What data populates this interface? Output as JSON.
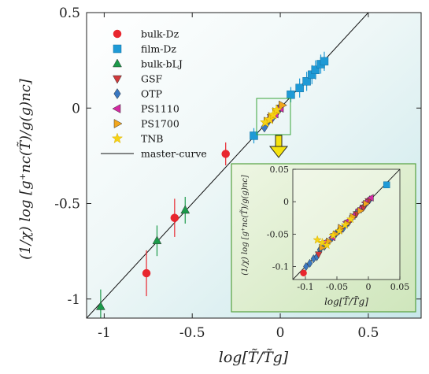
{
  "chart_data": {
    "type": "scatter",
    "title": "",
    "xlabel": "log[T̃/T̃g]",
    "ylabel": "(1/χ) log [g⁺nc(T̃)/g(g)nc]",
    "xlim": [
      -1.1,
      0.8
    ],
    "ylim": [
      -1.1,
      0.5
    ],
    "xticks": [
      "-1",
      "-0.5",
      "0",
      "0.5"
    ],
    "yticks": [
      "0.5",
      "0",
      "-0.5",
      "-1"
    ],
    "grid": false,
    "legend_position": "top-left",
    "master_curve": {
      "name": "master-curve",
      "slope": 1,
      "intercept": 0
    },
    "series": [
      {
        "name": "bulk-Dz",
        "marker": "circle",
        "color": "#e8262e",
        "points": [
          [
            -0.76,
            -0.865
          ],
          [
            -0.6,
            -0.575
          ],
          [
            -0.31,
            -0.24
          ]
        ],
        "errors": [
          0.12,
          0.1,
          0.06
        ]
      },
      {
        "name": "film-Dz",
        "marker": "square",
        "color": "#1f9ad6",
        "points": [
          [
            -0.15,
            -0.145
          ],
          [
            0.06,
            0.07
          ],
          [
            0.11,
            0.105
          ],
          [
            0.15,
            0.14
          ],
          [
            0.18,
            0.175
          ],
          [
            0.2,
            0.2
          ],
          [
            0.23,
            0.23
          ],
          [
            0.25,
            0.245
          ]
        ],
        "errors": [
          0.04,
          0.04,
          0.05,
          0.05,
          0.05,
          0.05,
          0.05,
          0.05
        ]
      },
      {
        "name": "bulk-bLJ",
        "marker": "triangle",
        "color": "#1b9a4a",
        "points": [
          [
            -1.02,
            -1.04
          ],
          [
            -0.7,
            -0.695
          ],
          [
            -0.54,
            -0.535
          ]
        ],
        "errors": [
          0.09,
          0.08,
          0.07
        ]
      },
      {
        "name": "GSF",
        "marker": "triangle-down",
        "color": "#d0393b",
        "points": [
          [
            -0.08,
            -0.085
          ],
          [
            -0.05,
            -0.05
          ],
          [
            -0.02,
            -0.025
          ],
          [
            0.0,
            0.0
          ]
        ],
        "errors": []
      },
      {
        "name": "OTP",
        "marker": "diamond",
        "color": "#3a78c2",
        "points": [
          [
            -0.09,
            -0.1
          ],
          [
            -0.07,
            -0.07
          ],
          [
            -0.045,
            -0.05
          ],
          [
            -0.02,
            -0.02
          ],
          [
            0.0,
            0.005
          ]
        ],
        "errors": []
      },
      {
        "name": "PS1110",
        "marker": "triangle-left",
        "color": "#d42aa3",
        "points": [
          [
            -0.06,
            -0.055
          ],
          [
            -0.03,
            -0.03
          ],
          [
            0.0,
            0.0
          ]
        ],
        "errors": []
      },
      {
        "name": "PS1700",
        "marker": "triangle-right",
        "color": "#f2a61c",
        "points": [
          [
            -0.075,
            -0.07
          ],
          [
            -0.05,
            -0.045
          ],
          [
            -0.025,
            -0.02
          ],
          [
            0.01,
            0.015
          ]
        ],
        "errors": []
      },
      {
        "name": "TNB",
        "marker": "star",
        "color": "#f6d215",
        "points": [
          [
            -0.085,
            -0.075
          ],
          [
            -0.06,
            -0.06
          ],
          [
            -0.04,
            -0.035
          ],
          [
            -0.02,
            -0.01
          ]
        ],
        "errors": []
      }
    ],
    "inset": {
      "xlim": [
        -0.12,
        0.05
      ],
      "ylim": [
        -0.12,
        0.05
      ],
      "xticks": [
        "-0.1",
        "-0.05",
        "0",
        "0.05"
      ],
      "yticks": [
        "0.05",
        "0",
        "-0.05",
        "-0.1"
      ],
      "xlabel": "log[T̃/T̃g]",
      "ylabel": "(1/χ) log [g⁺nc(T̃)/g(g)nc]",
      "series": [
        {
          "name": "bulk-Dz",
          "marker": "circle",
          "color": "#e8262e",
          "points": [
            [
              -0.103,
              -0.11
            ]
          ]
        },
        {
          "name": "film-Dz",
          "marker": "square",
          "color": "#1f9ad6",
          "points": [
            [
              0.029,
              0.026
            ]
          ]
        },
        {
          "name": "OTP",
          "marker": "diamond",
          "color": "#3a78c2",
          "points": [
            [
              -0.099,
              -0.1
            ],
            [
              -0.093,
              -0.095
            ],
            [
              -0.087,
              -0.088
            ],
            [
              -0.082,
              -0.085
            ],
            [
              -0.077,
              -0.074
            ],
            [
              -0.07,
              -0.069
            ],
            [
              -0.065,
              -0.064
            ],
            [
              -0.058,
              -0.056
            ],
            [
              -0.052,
              -0.05
            ],
            [
              -0.047,
              -0.045
            ],
            [
              -0.04,
              -0.041
            ],
            [
              -0.033,
              -0.033
            ],
            [
              -0.027,
              -0.026
            ],
            [
              -0.02,
              -0.019
            ],
            [
              -0.012,
              -0.011
            ],
            [
              -0.006,
              -0.006
            ],
            [
              0.002,
              0.003
            ]
          ]
        },
        {
          "name": "GSF",
          "marker": "triangle-down",
          "color": "#d0393b",
          "points": [
            [
              -0.079,
              -0.081
            ],
            [
              -0.068,
              -0.066
            ],
            [
              -0.055,
              -0.053
            ],
            [
              -0.043,
              -0.043
            ],
            [
              -0.031,
              -0.032
            ],
            [
              -0.019,
              -0.019
            ],
            [
              -0.008,
              -0.009
            ],
            [
              0.0,
              0.001
            ]
          ]
        },
        {
          "name": "PS1110",
          "marker": "triangle-left",
          "color": "#d42aa3",
          "points": [
            [
              -0.068,
              -0.062
            ],
            [
              -0.057,
              -0.055
            ],
            [
              -0.046,
              -0.044
            ],
            [
              -0.035,
              -0.031
            ],
            [
              -0.025,
              -0.022
            ],
            [
              -0.015,
              -0.012
            ],
            [
              -0.005,
              -0.001
            ],
            [
              0.004,
              0.006
            ]
          ]
        },
        {
          "name": "PS1700",
          "marker": "triangle-right",
          "color": "#f2a61c",
          "points": [
            [
              -0.074,
              -0.071
            ],
            [
              -0.063,
              -0.061
            ],
            [
              -0.052,
              -0.05
            ],
            [
              -0.044,
              -0.04
            ],
            [
              -0.034,
              -0.034
            ],
            [
              -0.025,
              -0.023
            ],
            [
              -0.013,
              -0.014
            ],
            [
              -0.004,
              -0.003
            ]
          ]
        },
        {
          "name": "TNB",
          "marker": "star",
          "color": "#f6d215",
          "points": [
            [
              -0.081,
              -0.059
            ],
            [
              -0.073,
              -0.063
            ],
            [
              -0.066,
              -0.067
            ],
            [
              -0.056,
              -0.052
            ],
            [
              -0.046,
              -0.045
            ],
            [
              -0.037,
              -0.036
            ],
            [
              -0.028,
              -0.027
            ]
          ]
        }
      ]
    }
  }
}
